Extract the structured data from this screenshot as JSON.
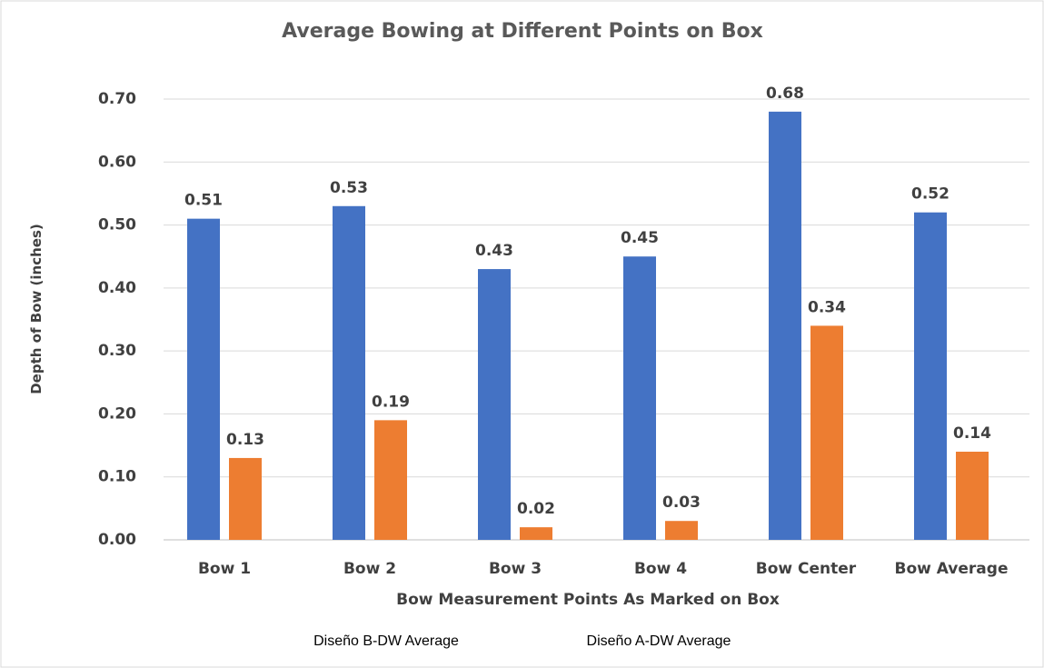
{
  "chart_data": {
    "type": "bar",
    "title": "Average Bowing at Different Points on Box",
    "x_label": "Bow Measurement Points As Marked on Box",
    "y_label": "Depth of Bow (inches)",
    "categories": [
      "Bow 1",
      "Bow 2",
      "Bow 3",
      "Bow 4",
      "Bow Center",
      "Bow Average"
    ],
    "series": [
      {
        "name": "Diseño B-DW Average",
        "color": "#4472c4",
        "values": [
          0.51,
          0.53,
          0.43,
          0.45,
          0.68,
          0.52
        ]
      },
      {
        "name": "Diseño A-DW Average",
        "color": "#ed7d31",
        "values": [
          0.13,
          0.19,
          0.02,
          0.03,
          0.34,
          0.14
        ]
      }
    ],
    "ylim": [
      0,
      0.7
    ],
    "yticks": [
      {
        "value": 0,
        "label": "0.00"
      },
      {
        "value": 0.1,
        "label": "0.10"
      },
      {
        "value": 0.2,
        "label": "0.20"
      },
      {
        "value": 0.3,
        "label": "0.30"
      },
      {
        "value": 0.4,
        "label": "0.40"
      },
      {
        "value": 0.5,
        "label": "0.50"
      },
      {
        "value": 0.6,
        "label": "0.60"
      },
      {
        "value": 0.7,
        "label": "0.70"
      }
    ],
    "grid": true,
    "legend": "bottom"
  }
}
